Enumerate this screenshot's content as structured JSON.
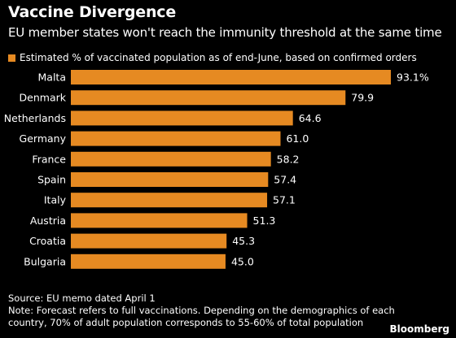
{
  "header": {
    "title": "Vaccine Divergence",
    "subtitle": "EU member states won't reach the immunity threshold at the same time"
  },
  "legend": {
    "label": "Estimated % of vaccinated population as of end-June, based on confirmed orders"
  },
  "colors": {
    "bar": "#E68A22",
    "background": "#000000",
    "text": "#FFFFFF"
  },
  "chart_data": {
    "type": "bar",
    "orientation": "horizontal",
    "categories": [
      "Malta",
      "Denmark",
      "Netherlands",
      "Germany",
      "France",
      "Spain",
      "Italy",
      "Austria",
      "Croatia",
      "Bulgaria"
    ],
    "values": [
      93.1,
      79.9,
      64.6,
      61.0,
      58.2,
      57.4,
      57.1,
      51.3,
      45.3,
      45.0
    ],
    "value_labels": [
      "93.1%",
      "79.9",
      "64.6",
      "61.0",
      "58.2",
      "57.4",
      "57.1",
      "51.3",
      "45.3",
      "45.0"
    ],
    "xlim": [
      0,
      93.1
    ],
    "grid": false,
    "legend_position": "top-left"
  },
  "footer": {
    "source": "Source: EU memo dated April 1",
    "note": "Note: Forecast refers to full vaccinations. Depending on the demographics of each country, 70% of adult population corresponds to 55-60% of total population",
    "logo": "Bloomberg"
  }
}
